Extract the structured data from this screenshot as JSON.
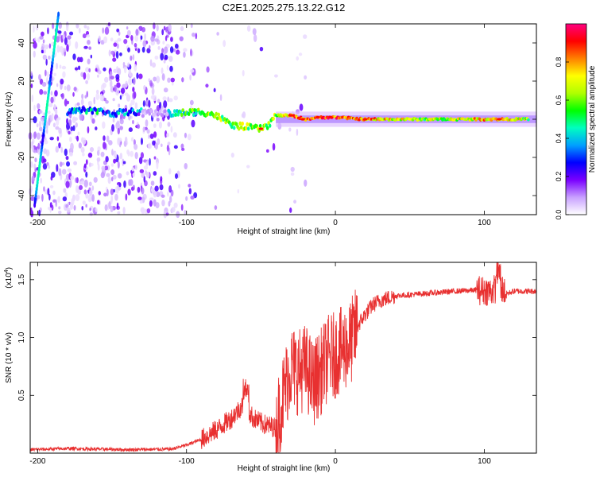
{
  "title": "C2E1.2025.275.13.22.G12",
  "chart_data": [
    {
      "type": "heatmap",
      "description": "Spectrogram: frequency vs height of straight line",
      "xlabel": "Height of straight line (km)",
      "ylabel": "Frequency (Hz)",
      "xlim": [
        -205,
        135
      ],
      "ylim": [
        -50,
        50
      ],
      "x_ticks": [
        -200,
        -100,
        0,
        100
      ],
      "y_ticks": [
        -40,
        -20,
        0,
        20,
        40
      ],
      "colorbar": {
        "label": "Normalized spectral amplitude",
        "range": [
          0,
          1
        ],
        "ticks": [
          "0.0",
          "0.2",
          "0.4",
          "0.6",
          "0.8"
        ],
        "colormap": [
          "#ffffff",
          "#c8a0ff",
          "#7a00ff",
          "#0000ff",
          "#00a0ff",
          "#00ffc0",
          "#00ff00",
          "#b0ff00",
          "#ffff00",
          "#ff8000",
          "#ff0000",
          "#ff0080"
        ]
      },
      "ridge": [
        {
          "x": -180,
          "f": 4,
          "a": 0.35
        },
        {
          "x": -165,
          "f": 5,
          "a": 0.4
        },
        {
          "x": -150,
          "f": 3,
          "a": 0.35
        },
        {
          "x": -135,
          "f": 4,
          "a": 0.3
        },
        {
          "x": -110,
          "f": 3,
          "a": 0.45
        },
        {
          "x": -90,
          "f": 4,
          "a": 0.55
        },
        {
          "x": -80,
          "f": 2,
          "a": 0.6
        },
        {
          "x": -70,
          "f": -3,
          "a": 0.6
        },
        {
          "x": -60,
          "f": -4,
          "a": 0.6
        },
        {
          "x": -50,
          "f": -5,
          "a": 0.7
        },
        {
          "x": -45,
          "f": -3,
          "a": 0.6
        },
        {
          "x": -40,
          "f": 2,
          "a": 0.6
        },
        {
          "x": -30,
          "f": 2,
          "a": 0.8
        },
        {
          "x": -20,
          "f": 0,
          "a": 0.85
        },
        {
          "x": -10,
          "f": 1,
          "a": 0.85
        },
        {
          "x": 0,
          "f": 1,
          "a": 0.85
        },
        {
          "x": 20,
          "f": 0,
          "a": 0.8
        },
        {
          "x": 60,
          "f": 0,
          "a": 0.6
        },
        {
          "x": 110,
          "f": 0,
          "a": 0.8
        },
        {
          "x": 130,
          "f": 0,
          "a": 0.6
        }
      ]
    },
    {
      "type": "line",
      "xlabel": "Height of straight line (km)",
      "ylabel": "SNR (10 * v/v)",
      "y_multiplier": "(x10",
      "y_exponent": "4",
      "y_multiplier_close": ")",
      "xlim": [
        -205,
        135
      ],
      "ylim": [
        0,
        16500
      ],
      "x_ticks": [
        -200,
        -100,
        0,
        100
      ],
      "y_ticks": [
        5000,
        10000,
        15000
      ],
      "y_tick_labels": [
        "0.5",
        "1.0",
        "1.5"
      ],
      "color": "#e83030",
      "series": [
        {
          "name": "SNR",
          "x": [
            -205,
            -180,
            -140,
            -110,
            -100,
            -90,
            -80,
            -70,
            -62,
            -55,
            -48,
            -40,
            -35,
            -30,
            -25,
            -20,
            -15,
            -10,
            -5,
            0,
            5,
            10,
            15,
            20,
            25,
            30,
            40,
            60,
            80,
            95,
            105,
            110,
            115,
            120,
            135
          ],
          "y": [
            300,
            400,
            300,
            350,
            700,
            1200,
            2000,
            3000,
            4200,
            3000,
            2500,
            2200,
            5000,
            7500,
            7000,
            7500,
            6000,
            7000,
            8200,
            8500,
            9000,
            9500,
            11000,
            12000,
            12800,
            13200,
            13600,
            13800,
            14000,
            14100,
            14000,
            14500,
            13800,
            14000,
            14000
          ]
        }
      ]
    }
  ]
}
